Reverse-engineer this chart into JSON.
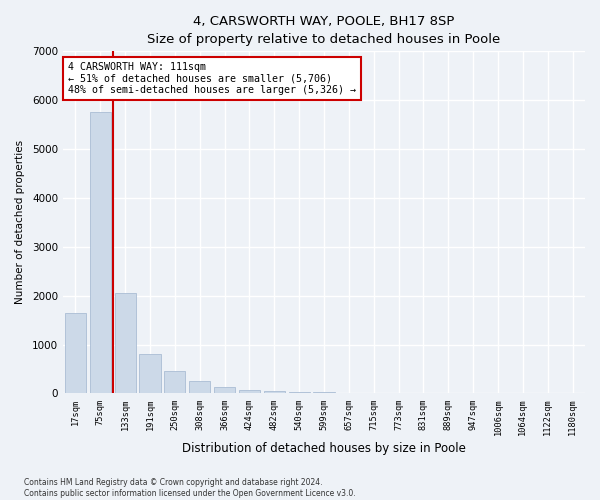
{
  "title_main": "4, CARSWORTH WAY, POOLE, BH17 8SP",
  "title_sub": "Size of property relative to detached houses in Poole",
  "xlabel": "Distribution of detached houses by size in Poole",
  "ylabel": "Number of detached properties",
  "bar_labels": [
    "17sqm",
    "75sqm",
    "133sqm",
    "191sqm",
    "250sqm",
    "308sqm",
    "366sqm",
    "424sqm",
    "482sqm",
    "540sqm",
    "599sqm",
    "657sqm",
    "715sqm",
    "773sqm",
    "831sqm",
    "889sqm",
    "947sqm",
    "1006sqm",
    "1064sqm",
    "1122sqm",
    "1180sqm"
  ],
  "bar_values": [
    1650,
    5750,
    2050,
    800,
    450,
    250,
    130,
    80,
    55,
    30,
    20,
    10,
    5,
    0,
    0,
    0,
    0,
    0,
    0,
    0,
    0
  ],
  "bar_color": "#ccd9e8",
  "bar_edge_color": "#aabdd4",
  "vline_x_index": 1.5,
  "vline_color": "#cc0000",
  "annotation_text": "4 CARSWORTH WAY: 111sqm\n← 51% of detached houses are smaller (5,706)\n48% of semi-detached houses are larger (5,326) →",
  "annotation_box_facecolor": "#ffffff",
  "annotation_box_edgecolor": "#cc0000",
  "ylim": [
    0,
    7000
  ],
  "yticks": [
    0,
    1000,
    2000,
    3000,
    4000,
    5000,
    6000,
    7000
  ],
  "footer_line1": "Contains HM Land Registry data © Crown copyright and database right 2024.",
  "footer_line2": "Contains public sector information licensed under the Open Government Licence v3.0.",
  "bg_color": "#eef2f7",
  "plot_bg_color": "#eef2f7",
  "grid_color": "#ffffff"
}
